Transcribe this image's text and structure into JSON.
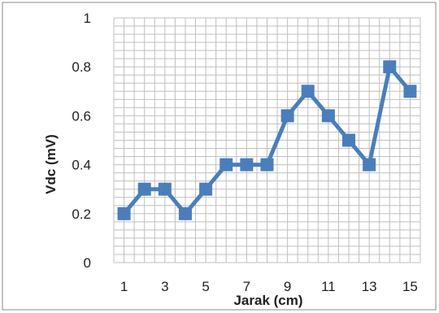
{
  "chart_data": {
    "type": "line",
    "x": [
      1,
      2,
      3,
      4,
      5,
      6,
      7,
      8,
      9,
      10,
      11,
      12,
      13,
      14,
      15
    ],
    "series": [
      {
        "values": [
          0.2,
          0.3,
          0.3,
          0.2,
          0.3,
          0.4,
          0.4,
          0.4,
          0.6,
          0.7,
          0.6,
          0.5,
          0.4,
          0.8,
          0.7
        ]
      }
    ],
    "xlabel": "Jarak (cm)",
    "ylabel": "Vdc (mV)",
    "xlim": [
      0.5,
      15.5
    ],
    "ylim": [
      0,
      1
    ],
    "x_ticks": [
      "1",
      "3",
      "5",
      "7",
      "9",
      "11",
      "13",
      "15"
    ],
    "y_ticks": [
      "0",
      "0.2",
      "0.4",
      "0.6",
      "0.8",
      "1"
    ],
    "grid": true,
    "legend": "none",
    "marker": "square",
    "series_color": "#4a7ebb",
    "grid_color": "#bfbfbf",
    "frame_color": "#888888"
  }
}
